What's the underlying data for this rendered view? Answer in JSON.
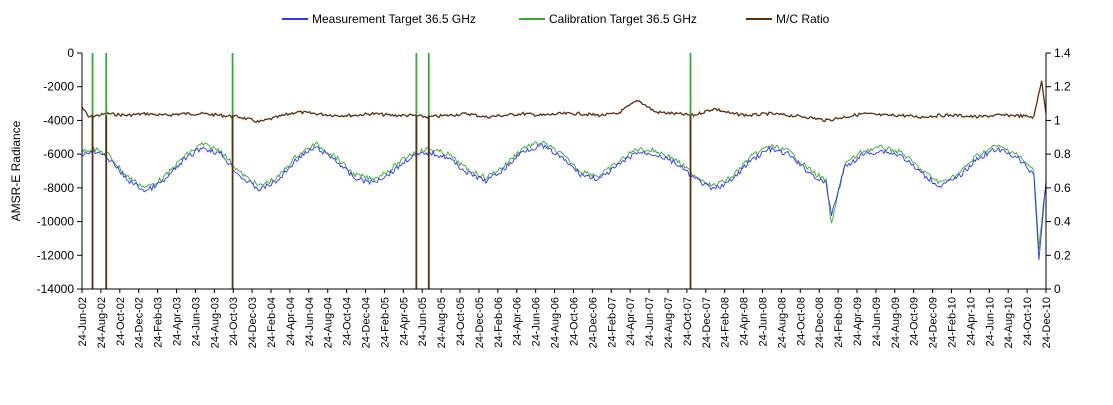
{
  "chart_data": {
    "type": "line",
    "title": "",
    "ylabel": "AMSR-E Radiance",
    "y2label": "",
    "xlabel": "",
    "ylim": [
      -14000,
      0
    ],
    "y_ticks": [
      0,
      -2000,
      -4000,
      -6000,
      -8000,
      -10000,
      -12000,
      -14000
    ],
    "y2lim": [
      0,
      1.4
    ],
    "y2_ticks": [
      "0",
      "0.2",
      "0.4",
      "0.6",
      "0.8",
      "1",
      "1.2",
      "1.4"
    ],
    "grid": false,
    "legend_position": "top",
    "x_range": [
      "2002-06-24",
      "2010-12-24"
    ],
    "x_ticks": [
      "24-Jun-02",
      "24-Aug-02",
      "24-Oct-02",
      "24-Dec-02",
      "24-Feb-03",
      "24-Apr-03",
      "24-Jun-03",
      "24-Aug-03",
      "24-Oct-03",
      "24-Dec-03",
      "24-Feb-04",
      "24-Apr-04",
      "24-Jun-04",
      "24-Aug-04",
      "24-Oct-04",
      "24-Dec-04",
      "24-Feb-05",
      "24-Apr-05",
      "24-Jun-05",
      "24-Aug-05",
      "24-Oct-05",
      "24-Dec-05",
      "24-Feb-06",
      "24-Apr-06",
      "24-Jun-06",
      "24-Aug-06",
      "24-Oct-06",
      "24-Dec-06",
      "24-Feb-07",
      "24-Apr-07",
      "24-Jun-07",
      "24-Aug-07",
      "24-Oct-07",
      "24-Dec-07",
      "24-Feb-08",
      "24-Apr-08",
      "24-Jun-08",
      "24-Aug-08",
      "24-Oct-08",
      "24-Dec-08",
      "24-Feb-09",
      "24-Apr-09",
      "24-Jun-09",
      "24-Aug-09",
      "24-Oct-09",
      "24-Dec-09",
      "24-Feb-10",
      "24-Apr-10",
      "24-Jun-10",
      "24-Aug-10",
      "24-Oct-10",
      "24-Dec-10"
    ],
    "series": [
      {
        "name": "Measurement Target 36.5 GHz",
        "axis": "left",
        "color": "#3333ff",
        "x": [
          "2002-06-24",
          "2002-08-01",
          "2002-09-15",
          "2002-11-15",
          "2003-01-15",
          "2003-03-15",
          "2003-05-15",
          "2003-07-15",
          "2003-09-15",
          "2003-11-15",
          "2004-01-15",
          "2004-03-15",
          "2004-05-15",
          "2004-07-15",
          "2004-09-15",
          "2004-11-15",
          "2005-01-15",
          "2005-03-15",
          "2005-05-15",
          "2005-07-15",
          "2005-09-15",
          "2005-11-15",
          "2006-01-15",
          "2006-03-15",
          "2006-05-15",
          "2006-07-15",
          "2006-09-15",
          "2006-11-15",
          "2007-01-15",
          "2007-03-15",
          "2007-05-15",
          "2007-07-15",
          "2007-09-15",
          "2007-11-15",
          "2008-01-15",
          "2008-03-15",
          "2008-05-15",
          "2008-07-15",
          "2008-09-15",
          "2008-11-15",
          "2009-01-15",
          "2009-02-01",
          "2009-03-15",
          "2009-05-15",
          "2009-07-15",
          "2009-09-15",
          "2009-11-15",
          "2010-01-15",
          "2010-03-15",
          "2010-05-15",
          "2010-07-15",
          "2010-09-15",
          "2010-11-15",
          "2010-12-01",
          "2010-12-24"
        ],
        "values": [
          -6000,
          -5900,
          -6200,
          -7500,
          -8200,
          -7600,
          -6400,
          -5600,
          -6000,
          -7300,
          -8100,
          -7600,
          -6300,
          -5600,
          -6300,
          -7400,
          -7700,
          -7100,
          -6200,
          -5900,
          -6200,
          -7100,
          -7600,
          -6900,
          -5800,
          -5500,
          -6200,
          -7200,
          -7500,
          -6700,
          -5900,
          -6000,
          -6500,
          -7400,
          -8100,
          -7600,
          -6400,
          -5700,
          -6000,
          -7000,
          -7800,
          -9600,
          -6800,
          -6000,
          -5800,
          -6100,
          -7100,
          -7900,
          -7400,
          -6300,
          -5700,
          -6100,
          -7200,
          -12200,
          -7700
        ]
      },
      {
        "name": "Calibration Target 36.5 GHz",
        "axis": "left",
        "color": "#33aa33",
        "x": [
          "2002-06-24",
          "2002-08-01",
          "2002-09-15",
          "2002-11-15",
          "2003-01-15",
          "2003-03-15",
          "2003-05-15",
          "2003-07-15",
          "2003-09-15",
          "2003-11-15",
          "2004-01-15",
          "2004-03-15",
          "2004-05-15",
          "2004-07-15",
          "2004-09-15",
          "2004-11-15",
          "2005-01-15",
          "2005-03-15",
          "2005-05-15",
          "2005-07-15",
          "2005-09-15",
          "2005-11-15",
          "2006-01-15",
          "2006-03-15",
          "2006-05-15",
          "2006-07-15",
          "2006-09-15",
          "2006-11-15",
          "2007-01-15",
          "2007-03-15",
          "2007-05-15",
          "2007-07-15",
          "2007-09-15",
          "2007-11-15",
          "2008-01-15",
          "2008-03-15",
          "2008-05-15",
          "2008-07-15",
          "2008-09-15",
          "2008-11-15",
          "2009-01-15",
          "2009-02-01",
          "2009-03-15",
          "2009-05-15",
          "2009-07-15",
          "2009-09-15",
          "2009-11-15",
          "2010-01-15",
          "2010-03-15",
          "2010-05-15",
          "2010-07-15",
          "2010-09-15",
          "2010-11-15",
          "2010-12-01",
          "2010-12-24"
        ],
        "values": [
          -5800,
          -5700,
          -6000,
          -7300,
          -8000,
          -7400,
          -6200,
          -5400,
          -5800,
          -7100,
          -7900,
          -7400,
          -6100,
          -5400,
          -6100,
          -7200,
          -7500,
          -6900,
          -6000,
          -5700,
          -6000,
          -6900,
          -7400,
          -6700,
          -5600,
          -5300,
          -6000,
          -7000,
          -7300,
          -6500,
          -5700,
          -5800,
          -6300,
          -7200,
          -7900,
          -7400,
          -6200,
          -5500,
          -5800,
          -6800,
          -7600,
          -10200,
          -6600,
          -5800,
          -5600,
          -5900,
          -6900,
          -7700,
          -7200,
          -6100,
          -5500,
          -5900,
          -7000,
          -11500,
          -7600
        ]
      },
      {
        "name": "M/C Ratio",
        "axis": "right",
        "color": "#5c2e0e",
        "x": [
          "2002-06-24",
          "2002-07-15",
          "2002-09-15",
          "2002-11-15",
          "2003-01-15",
          "2003-03-15",
          "2003-05-15",
          "2003-07-15",
          "2003-09-15",
          "2003-11-15",
          "2004-01-15",
          "2004-03-15",
          "2004-05-15",
          "2004-07-15",
          "2004-09-15",
          "2004-11-15",
          "2005-01-15",
          "2005-03-15",
          "2005-05-15",
          "2005-07-15",
          "2005-09-15",
          "2005-11-15",
          "2006-01-15",
          "2006-03-15",
          "2006-05-15",
          "2006-07-15",
          "2006-09-15",
          "2006-11-15",
          "2007-01-15",
          "2007-03-15",
          "2007-05-20",
          "2007-07-15",
          "2007-09-15",
          "2007-11-15",
          "2008-01-20",
          "2008-03-15",
          "2008-05-15",
          "2008-07-15",
          "2008-09-15",
          "2008-11-15",
          "2009-01-15",
          "2009-03-15",
          "2009-05-15",
          "2009-07-15",
          "2009-09-15",
          "2009-11-15",
          "2010-01-15",
          "2010-03-15",
          "2010-05-15",
          "2010-07-15",
          "2010-09-15",
          "2010-11-15",
          "2010-12-10",
          "2010-12-24"
        ],
        "values": [
          1.08,
          1.02,
          1.04,
          1.03,
          1.04,
          1.03,
          1.04,
          1.04,
          1.03,
          1.02,
          0.99,
          1.02,
          1.05,
          1.04,
          1.03,
          1.03,
          1.04,
          1.03,
          1.03,
          1.02,
          1.03,
          1.04,
          1.02,
          1.03,
          1.04,
          1.03,
          1.04,
          1.04,
          1.03,
          1.04,
          1.12,
          1.05,
          1.04,
          1.03,
          1.07,
          1.04,
          1.03,
          1.04,
          1.03,
          1.02,
          1.0,
          1.02,
          1.04,
          1.03,
          1.03,
          1.02,
          1.03,
          1.03,
          1.02,
          1.03,
          1.03,
          1.02,
          1.24,
          1.04
        ]
      }
    ],
    "spikes": [
      {
        "series": "Calibration Target 36.5 GHz",
        "x": "2002-07-28",
        "to": 0
      },
      {
        "series": "Calibration Target 36.5 GHz",
        "x": "2002-09-10",
        "to": 0
      },
      {
        "series": "Calibration Target 36.5 GHz",
        "x": "2003-10-22",
        "to": 0
      },
      {
        "series": "Calibration Target 36.5 GHz",
        "x": "2005-06-05",
        "to": 0
      },
      {
        "series": "Calibration Target 36.5 GHz",
        "x": "2005-07-15",
        "to": 0
      },
      {
        "series": "Calibration Target 36.5 GHz",
        "x": "2007-11-05",
        "to": 0
      },
      {
        "series": "M/C Ratio",
        "x": "2002-07-28",
        "to": 0
      },
      {
        "series": "M/C Ratio",
        "x": "2002-09-10",
        "to": 0
      },
      {
        "series": "M/C Ratio",
        "x": "2003-10-22",
        "to": 0
      },
      {
        "series": "M/C Ratio",
        "x": "2005-06-05",
        "to": 0
      },
      {
        "series": "M/C Ratio",
        "x": "2005-07-15",
        "to": 0
      },
      {
        "series": "M/C Ratio",
        "x": "2007-11-05",
        "to": 0
      }
    ]
  }
}
